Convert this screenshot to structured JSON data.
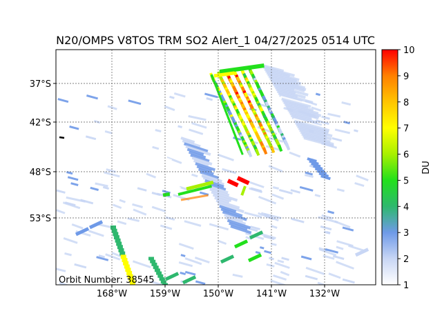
{
  "title": "N20/OMPS V8TOS TRM SO2 Alert_1 04/27/2025 0514 UTC",
  "orbit_label": "Orbit Number: 38545",
  "x_ticks": [
    "168°W",
    "159°W",
    "150°W",
    "141°W",
    "132°W"
  ],
  "y_ticks": [
    "37°S",
    "42°S",
    "48°S",
    "53°S"
  ],
  "colorbar": {
    "label": "DU",
    "min": 1,
    "max": 10,
    "ticks": [
      "1",
      "2",
      "3",
      "4",
      "5",
      "6",
      "7",
      "8",
      "9",
      "10"
    ],
    "colors": [
      "#ffffff",
      "#c8d6f5",
      "#6f9ae8",
      "#2eb86e",
      "#22e01c",
      "#a8f000",
      "#ffff00",
      "#ffc400",
      "#ff8000",
      "#ff0000"
    ]
  },
  "chart_data": {
    "type": "heatmap",
    "title": "N20/OMPS V8TOS TRM SO2 Alert_1 04/27/2025 0514 UTC",
    "xlabel": "",
    "ylabel": "",
    "x_tick_labels": [
      "168°W",
      "159°W",
      "150°W",
      "141°W",
      "132°W"
    ],
    "y_tick_labels": [
      "37°S",
      "42°S",
      "48°S",
      "53°S"
    ],
    "grid": true,
    "colorbar_label": "DU",
    "colorbar_range": [
      1,
      10
    ],
    "annotation": "Orbit Number: 38545"
  }
}
